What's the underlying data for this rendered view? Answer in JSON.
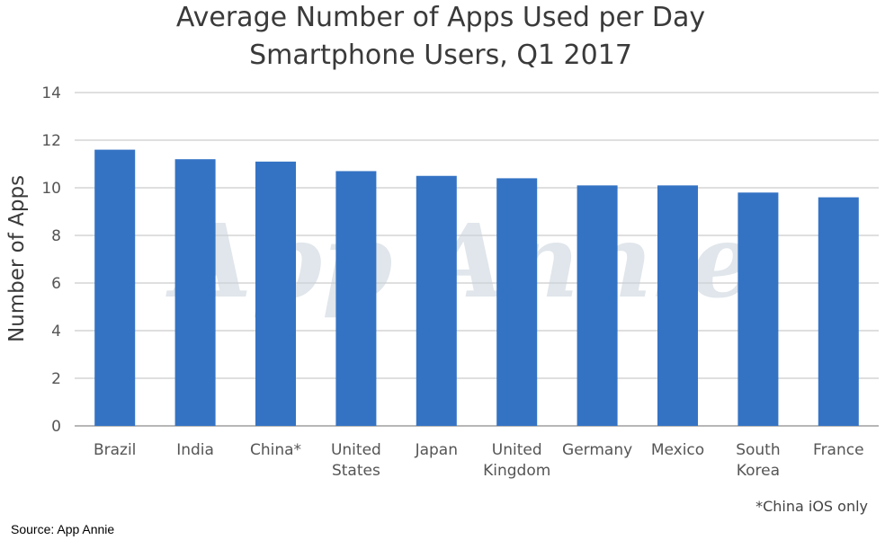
{
  "chart_data": {
    "type": "bar",
    "title_lines": [
      "Average Number of Apps Used per Day",
      "Smartphone Users, Q1 2017"
    ],
    "ylabel": "Number of Apps",
    "xlabel": "",
    "ylim": [
      0,
      14
    ],
    "yticks": [
      0,
      2,
      4,
      6,
      8,
      10,
      12,
      14
    ],
    "grid": true,
    "categories": [
      [
        "Brazil"
      ],
      [
        "India"
      ],
      [
        "China*"
      ],
      [
        "United",
        "States"
      ],
      [
        "Japan"
      ],
      [
        "United",
        "Kingdom"
      ],
      [
        "Germany"
      ],
      [
        "Mexico"
      ],
      [
        "South",
        "Korea"
      ],
      [
        "France"
      ]
    ],
    "values": [
      11.6,
      11.2,
      11.1,
      10.7,
      10.5,
      10.4,
      10.1,
      10.1,
      9.8,
      9.6
    ],
    "bar_color": "#3473c4",
    "footnote": "*China iOS only",
    "watermark": "App Annie"
  },
  "source": "Source: App Annie"
}
